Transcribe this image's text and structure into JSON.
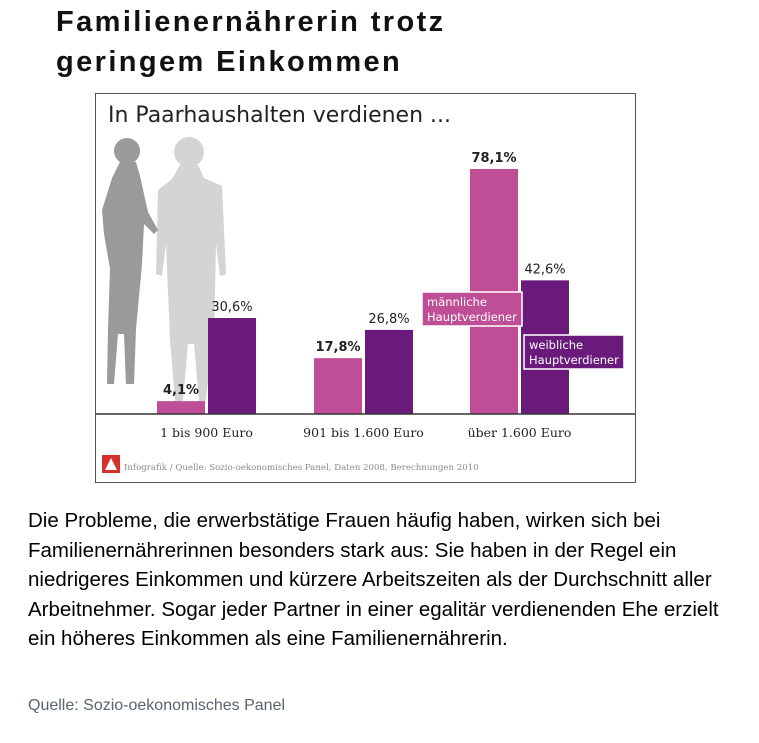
{
  "article": {
    "headline_line1": "Familienernährerin trotz",
    "headline_line2": "geringem Einkommen",
    "body": "Die Probleme, die erwerbstätige Frauen häufig haben, wirken sich bei Familienernährerinnen besonders stark aus: Sie haben in der Regel ein niedrigeres Einkommen und kürzere Arbeitszeiten als der Durchschnitt aller Arbeitnehmer. Sogar jeder Partner in einer egalitär verdienenden Ehe erzielt ein höheres Einkommen als eine Familienernährerin.",
    "source": "Quelle: Sozio-oekonomisches Panel"
  },
  "chart_data": {
    "type": "bar",
    "title": "In Paarhaushalten verdienen ...",
    "categories": [
      "1 bis 900 Euro",
      "901 bis 1.600 Euro",
      "über 1.600 Euro"
    ],
    "series": [
      {
        "name": "männliche Hauptverdiener",
        "color": "#c04e96",
        "values": [
          4.1,
          17.8,
          78.1
        ],
        "value_labels": [
          "4,1%",
          "17,8%",
          "78,1%"
        ]
      },
      {
        "name": "weibliche Hauptverdiener",
        "color": "#6a1a7a",
        "values": [
          30.6,
          26.8,
          42.6
        ],
        "value_labels": [
          "30,6%",
          "26,8%",
          "42,6%"
        ]
      }
    ],
    "ylim": [
      0,
      78.1
    ],
    "legend": {
      "male_line1": "männliche",
      "male_line2": "Hauptverdiener",
      "female_line1": "weibliche",
      "female_line2": "Hauptverdiener"
    },
    "footer": "Infografik / Quelle: Sozio-oekonomisches Panel, Daten 2008, Berechnungen 2010"
  },
  "colors": {
    "male": "#c04e96",
    "female": "#6a1a7a",
    "axis": "#333333",
    "logo": "#d6312c"
  },
  "icons": {
    "silhouettes": "woman-and-man-silhouette-icon",
    "logo": "ig-metall-logo-icon"
  }
}
